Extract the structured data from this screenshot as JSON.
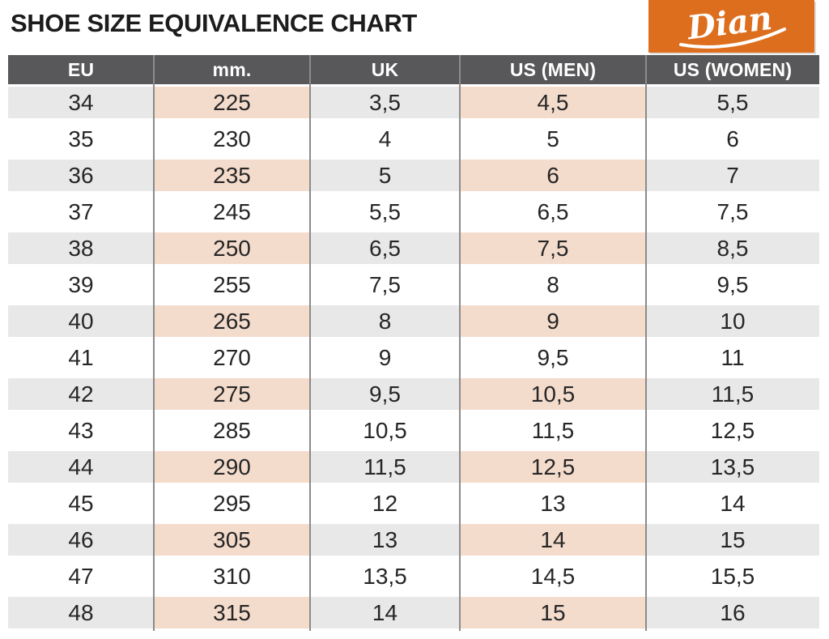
{
  "title": "SHOE SIZE EQUIVALENCE CHART",
  "logo": {
    "brand": "Dian",
    "background_color": "#dd6e1e",
    "text_color": "#ffffff"
  },
  "colors": {
    "header_bg": "#58585a",
    "header_text": "#ffffff",
    "shaded_row_bg": "#e8e8e9",
    "highlight_cell_bg": "#f4dccd",
    "divider": "#8b8b8b",
    "body_text": "#262626",
    "accent_orange": "#dd6e1e"
  },
  "chart_data": {
    "type": "table",
    "title": "SHOE SIZE EQUIVALENCE CHART",
    "columns": [
      "EU",
      "mm.",
      "UK",
      "US (MEN)",
      "US (WOMEN)"
    ],
    "highlighted_columns": [
      "mm.",
      "US (MEN)"
    ],
    "rows": [
      [
        "34",
        "225",
        "3,5",
        "4,5",
        "5,5"
      ],
      [
        "35",
        "230",
        "4",
        "5",
        "6"
      ],
      [
        "36",
        "235",
        "5",
        "6",
        "7"
      ],
      [
        "37",
        "245",
        "5,5",
        "6,5",
        "7,5"
      ],
      [
        "38",
        "250",
        "6,5",
        "7,5",
        "8,5"
      ],
      [
        "39",
        "255",
        "7,5",
        "8",
        "9,5"
      ],
      [
        "40",
        "265",
        "8",
        "9",
        "10"
      ],
      [
        "41",
        "270",
        "9",
        "9,5",
        "11"
      ],
      [
        "42",
        "275",
        "9,5",
        "10,5",
        "11,5"
      ],
      [
        "43",
        "285",
        "10,5",
        "11,5",
        "12,5"
      ],
      [
        "44",
        "290",
        "11,5",
        "12,5",
        "13,5"
      ],
      [
        "45",
        "295",
        "12",
        "13",
        "14"
      ],
      [
        "46",
        "305",
        "13",
        "14",
        "15"
      ],
      [
        "47",
        "310",
        "13,5",
        "14,5",
        "15,5"
      ],
      [
        "48",
        "315",
        "14",
        "15",
        "16"
      ]
    ]
  }
}
